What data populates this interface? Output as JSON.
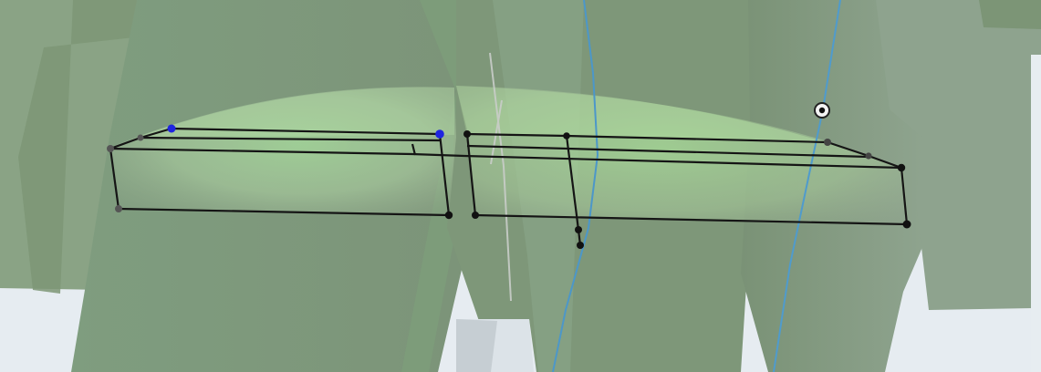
{
  "viewport": {
    "background": "#e9eef3",
    "mode": "3d-model-view",
    "selected_vertex_color": "#1f24e0",
    "edge_color": "#151515",
    "guide_line_color": "#4b93c3",
    "mass_color": "#8aa88a",
    "highlight_color": "#9bd08a"
  },
  "scene": {
    "masses": [
      "background-mass-left",
      "foreground-mass-left",
      "foreground-mass-right",
      "center-tall-block",
      "right-tall-block",
      "left-tall-block"
    ],
    "selection": [
      "curved-slab-left",
      "curved-slab-right"
    ],
    "guides": [
      "guide-line-left",
      "guide-line-right"
    ],
    "markers": [
      "snap-target-icon"
    ]
  }
}
